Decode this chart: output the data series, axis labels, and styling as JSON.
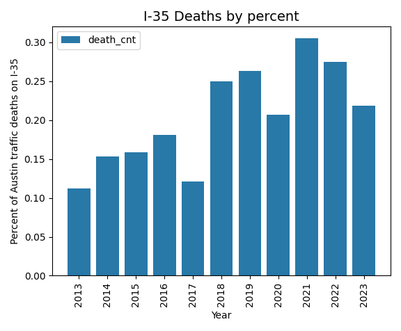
{
  "title": "I-35 Deaths by percent",
  "xlabel": "Year",
  "ylabel": "Percent of Austin traffic deaths on I-35",
  "legend_label": "death_cnt",
  "years": [
    2013,
    2014,
    2015,
    2016,
    2017,
    2018,
    2019,
    2020,
    2021,
    2022,
    2023
  ],
  "values": [
    0.112,
    0.153,
    0.159,
    0.181,
    0.121,
    0.25,
    0.263,
    0.207,
    0.305,
    0.275,
    0.218
  ],
  "bar_color": "#2878a8",
  "ylim": [
    0.0,
    0.32
  ],
  "figsize": [
    5.76,
    4.76
  ],
  "dpi": 100,
  "title_fontsize": 14,
  "label_fontsize": 10,
  "tick_fontsize": 10,
  "legend_fontsize": 10
}
